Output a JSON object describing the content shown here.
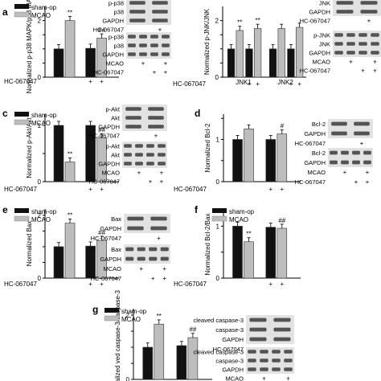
{
  "colors": {
    "sham": "#111111",
    "mcao": "#bdbdbd",
    "blot_bg": "#e2e2e2",
    "band": "#3a3a3a"
  },
  "legend": {
    "sham": "sham-op",
    "mcao": "MCAO"
  },
  "row_labels": {
    "drug": "HC-067047",
    "mcao": "MCAO",
    "gapdh": "GAPDH"
  },
  "chart_data": [
    {
      "panel": "a",
      "type": "bar",
      "ylabel": "Normalized p-p38 MAPK/p38 MAPK",
      "ylim": [
        0,
        2.5
      ],
      "yticks": [
        "0",
        "",
        "",
        "2"
      ],
      "groups": [
        {
          "label": "",
          "values": [
            1.0,
            2.0,
            1.02,
            1.38
          ],
          "marks": [
            "",
            "**",
            "",
            "##"
          ]
        }
      ],
      "treatment": {
        "label": "HC-067047",
        "signs": [
          "",
          "",
          "+",
          "+"
        ]
      },
      "blots": [
        {
          "rows": [
            "p-p38",
            "p38",
            "GAPDH",
            "HC-067047"
          ],
          "signs": [
            "",
            "+"
          ]
        },
        {
          "rows": [
            "p-p38",
            "p38",
            "GAPDH",
            "MCAO",
            "HC-067047"
          ],
          "signs": [
            [
              "",
              "+",
              "",
              "+"
            ],
            [
              "",
              "",
              "+",
              "+"
            ]
          ]
        }
      ]
    },
    {
      "panel": "b",
      "type": "bar",
      "ylabel": "Normalized p-JNK/JNK",
      "ylim": [
        0,
        2.5
      ],
      "yticks": [
        "0",
        "",
        "",
        "2"
      ],
      "groups": [
        {
          "label": "JNK1",
          "values": [
            1.0,
            1.65,
            1.0,
            1.72
          ],
          "marks": [
            "",
            "**",
            "",
            "**"
          ]
        },
        {
          "label": "JNK2",
          "values": [
            1.0,
            1.72,
            1.0,
            1.76
          ],
          "marks": [
            "",
            "",
            "",
            ""
          ]
        }
      ],
      "treatment": {
        "label": "HC-067047",
        "signs": [
          "",
          "",
          "+",
          "+"
        ]
      },
      "blots": [
        {
          "rows": [
            "JNK",
            "GAPDH",
            "HC-067047"
          ],
          "signs": [
            "",
            "+"
          ]
        },
        {
          "rows": [
            "p-JNK",
            "JNK",
            "GAPDH",
            "MCAO",
            "HC-067047"
          ],
          "signs": [
            [
              "",
              "+",
              "",
              "+"
            ],
            [
              "",
              "",
              "+",
              "+"
            ]
          ]
        }
      ]
    },
    {
      "panel": "c",
      "type": "bar",
      "ylabel": "Normalized p-Akt/Akt",
      "ylim": [
        0,
        1.2
      ],
      "yticks": [
        "0",
        "",
        "1"
      ],
      "groups": [
        {
          "label": "",
          "values": [
            1.0,
            0.35,
            1.0,
            0.78
          ],
          "marks": [
            "",
            "**",
            "",
            "##"
          ]
        }
      ],
      "treatment": {
        "label": "HC-067047",
        "signs": [
          "",
          "",
          "+",
          "+"
        ]
      },
      "blots": [
        {
          "rows": [
            "p-Akt",
            "Akt",
            "GAPDH",
            "HC-067047"
          ],
          "signs": [
            "",
            "+"
          ]
        },
        {
          "rows": [
            "p-Akt",
            "Akt",
            "GAPDH",
            "MCAO",
            "HC-067047"
          ],
          "signs": [
            [
              "",
              "+",
              "",
              "+"
            ],
            [
              "",
              "",
              "+",
              "+"
            ]
          ]
        }
      ]
    },
    {
      "panel": "d",
      "type": "bar",
      "ylabel": "Normalized Bcl-2",
      "ylim": [
        0,
        1.6
      ],
      "yticks": [
        "0",
        "",
        "1",
        ""
      ],
      "groups": [
        {
          "label": "",
          "values": [
            1.0,
            1.25,
            1.0,
            1.13
          ],
          "marks": [
            "",
            "",
            "",
            "#"
          ]
        }
      ],
      "treatment": {
        "label": "HC-067047",
        "signs": [
          "",
          "",
          "+",
          "+"
        ]
      },
      "blots": [
        {
          "rows": [
            "Bcl-2",
            "GAPDH",
            "HC-067047"
          ],
          "signs": [
            "",
            "+"
          ]
        },
        {
          "rows": [
            "Bcl-2",
            "GAPDH",
            "MCAO",
            "HC-067047"
          ],
          "signs": [
            [
              "",
              "+",
              "",
              "+"
            ],
            [
              "",
              "",
              "+",
              "+"
            ]
          ]
        }
      ]
    },
    {
      "panel": "e",
      "type": "bar",
      "ylabel": "Normalized Bax",
      "ylim": [
        0,
        2.2
      ],
      "yticks": [
        "0",
        "",
        "",
        "2"
      ],
      "groups": [
        {
          "label": "",
          "values": [
            1.0,
            1.75,
            1.02,
            1.2
          ],
          "marks": [
            "",
            "**",
            "",
            "##"
          ]
        }
      ],
      "treatment": {
        "label": "HC-067047",
        "signs": [
          "",
          "",
          "+",
          "+"
        ]
      },
      "blots": [
        {
          "rows": [
            "Bax",
            "GAPDH",
            "HC-067047"
          ],
          "signs": [
            "",
            "+"
          ]
        },
        {
          "rows": [
            "Bax",
            "GAPDH",
            "MCAO",
            "HC-067047"
          ],
          "signs": [
            [
              "",
              "+",
              "",
              "+"
            ],
            [
              "",
              "",
              "+",
              "+"
            ]
          ]
        }
      ]
    },
    {
      "panel": "f",
      "type": "bar",
      "ylabel": "Normalized Bcl-2/Bax",
      "ylim": [
        0,
        1.3
      ],
      "yticks": [
        "0",
        "",
        "1"
      ],
      "groups": [
        {
          "label": "",
          "values": [
            1.0,
            0.7,
            0.98,
            0.96
          ],
          "marks": [
            "",
            "**",
            "",
            "##"
          ]
        }
      ],
      "treatment": {
        "label": "HC-067047",
        "signs": [
          "",
          "",
          "+",
          "+"
        ]
      },
      "blots": []
    },
    {
      "panel": "g",
      "type": "bar",
      "ylabel": "Normalized ved caspase-3/caspase-3",
      "ylim": [
        0,
        2.2
      ],
      "yticks": [
        "0",
        "",
        "",
        "2"
      ],
      "groups": [
        {
          "label": "",
          "values": [
            1.0,
            1.72,
            1.05,
            1.3
          ],
          "marks": [
            "",
            "**",
            "",
            "##"
          ]
        }
      ],
      "treatment": {
        "label": "",
        "signs": [
          "",
          "",
          "",
          ""
        ]
      },
      "blots": [
        {
          "rows": [
            "cleaved caspase-3",
            "caspase-3",
            "GAPDH",
            "HC-067047"
          ],
          "signs": [
            "",
            "+"
          ]
        },
        {
          "rows": [
            "cleaved caspase-3",
            "caspase-3",
            "GAPDH",
            "MCAO",
            "HC-067047"
          ],
          "signs": [
            [
              "",
              "+",
              "",
              "+"
            ],
            [
              "",
              "",
              "+",
              "+"
            ]
          ]
        }
      ]
    }
  ]
}
